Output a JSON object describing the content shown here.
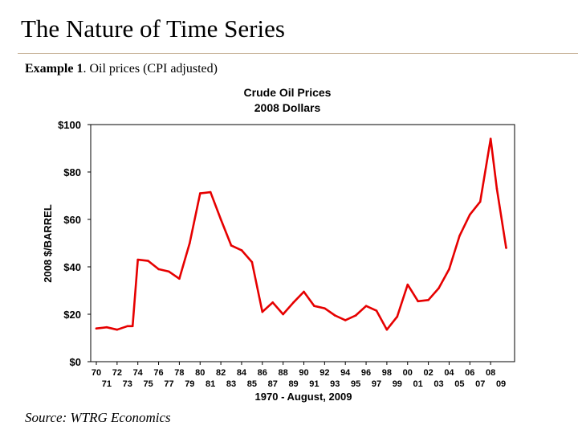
{
  "slide": {
    "title": "The Nature of Time Series",
    "example_label": "Example 1",
    "example_text": ". Oil prices (CPI adjusted)",
    "source": "Source:  WTRG Economics"
  },
  "colors": {
    "line": "#e60000",
    "axis": "#000000",
    "rule": "#c8b49a"
  },
  "chart_data": {
    "type": "line",
    "title": "Crude Oil Prices",
    "subtitle": "2008 Dollars",
    "xlabel": "1970 - August, 2009",
    "ylabel": "2008 $/BARREL",
    "ylim": [
      0,
      100
    ],
    "xlim": [
      1970,
      2009.9
    ],
    "y_ticks": [
      {
        "value": 0,
        "label": "$0"
      },
      {
        "value": 20,
        "label": "$20"
      },
      {
        "value": 40,
        "label": "$40"
      },
      {
        "value": 60,
        "label": "$60"
      },
      {
        "value": 80,
        "label": "$80"
      },
      {
        "value": 100,
        "label": "$100"
      }
    ],
    "x_ticks_upper": [
      "70",
      "72",
      "74",
      "76",
      "78",
      "80",
      "82",
      "84",
      "86",
      "88",
      "90",
      "92",
      "94",
      "96",
      "98",
      "00",
      "02",
      "04",
      "06",
      "08"
    ],
    "x_ticks_lower": [
      "71",
      "73",
      "75",
      "77",
      "79",
      "81",
      "83",
      "85",
      "87",
      "89",
      "91",
      "93",
      "95",
      "97",
      "99",
      "01",
      "03",
      "05",
      "07",
      "09"
    ],
    "grid": false,
    "series": [
      {
        "name": "Crude Oil Price",
        "x": [
          1970,
          1971,
          1972,
          1973,
          1973.5,
          1974,
          1975,
          1976,
          1977,
          1978,
          1979,
          1980,
          1981,
          1982,
          1983,
          1984,
          1985,
          1986,
          1987,
          1988,
          1989,
          1990,
          1991,
          1992,
          1993,
          1994,
          1995,
          1996,
          1997,
          1998,
          1999,
          2000,
          2001,
          2002,
          2003,
          2004,
          2005,
          2006,
          2007,
          2008,
          2008.6,
          2009.5
        ],
        "y": [
          14,
          14.5,
          13.5,
          15,
          15,
          43,
          42.5,
          39,
          38,
          35,
          50,
          71,
          71.5,
          60,
          49,
          47,
          42,
          21,
          25,
          20,
          25,
          29.5,
          23.5,
          22.5,
          19.5,
          17.5,
          19.5,
          23.5,
          21.5,
          13.5,
          19,
          32.5,
          25.5,
          26,
          31,
          39,
          53,
          62,
          67.5,
          94,
          73,
          48
        ]
      }
    ]
  }
}
